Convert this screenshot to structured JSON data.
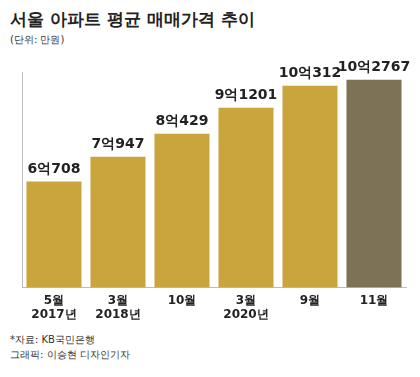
{
  "chart_data": {
    "type": "bar",
    "title": "서울 아파트 평균 매매가격 추이",
    "subtitle": "(단위: 만원)",
    "categories": [
      "5월 2017년",
      "3월 2018년",
      "10월",
      "3월 2020년",
      "9월",
      "11월"
    ],
    "values": [
      60708,
      70947,
      80429,
      91201,
      100312,
      102767
    ],
    "value_labels": [
      "6억708",
      "7억947",
      "8억429",
      "9억1201",
      "10억312",
      "10억2767"
    ],
    "data_labels": true,
    "colors": [
      "#c9a53c",
      "#c9a53c",
      "#c9a53c",
      "#c9a53c",
      "#c9a53c",
      "#7e7256"
    ],
    "ylim": [
      17000,
      106000
    ],
    "grid": false,
    "tick_labels": "x",
    "annotations": [
      "*자료: KB국민은행",
      "그래픽: 이승현 디자인기자"
    ]
  }
}
